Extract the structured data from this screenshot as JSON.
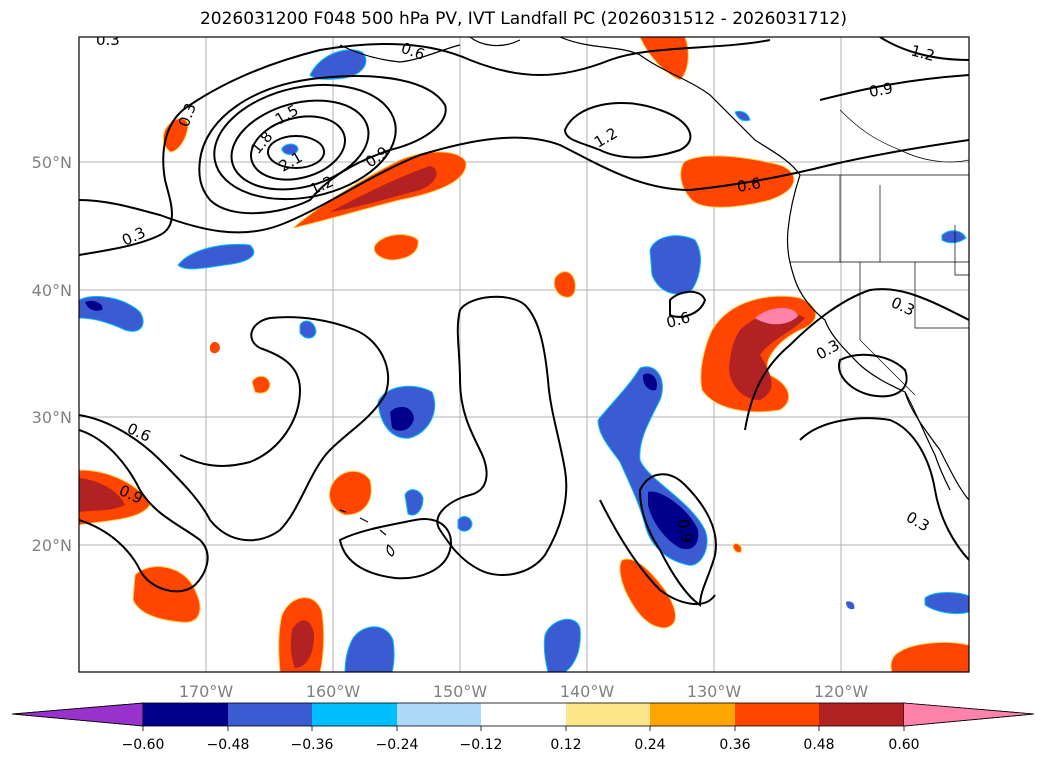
{
  "title": "2026031200 F048 500 hPa PV, IVT Landfall PC (2026031512 - 2026031712)",
  "map": {
    "lat_labels": [
      "50°N",
      "40°N",
      "30°N",
      "20°N"
    ],
    "lon_labels": [
      "170°W",
      "160°W",
      "150°W",
      "140°W",
      "130°W",
      "120°W"
    ],
    "contour_labels": [
      "0.3",
      "0.3",
      "0.3",
      "0.3",
      "0.3",
      "0.3",
      "0.6",
      "0.6",
      "0.6",
      "0.6",
      "0.9",
      "0.9",
      "0.9",
      "0.9",
      "1.2",
      "1.2",
      "1.2",
      "1.5",
      "1.8",
      "2.1"
    ],
    "fill_colors": {
      "dark_navy": "#00008b",
      "blue": "#3a5bd2",
      "sky": "#00bfff",
      "light_blue": "#add8f7",
      "orange_red": "#ff4500",
      "dark_red": "#b22222",
      "pink": "#ff82ab",
      "yellow": "#ffe88a"
    }
  },
  "colorbar": {
    "ticks": [
      "−0.60",
      "−0.48",
      "−0.36",
      "−0.24",
      "−0.12",
      "0.12",
      "0.24",
      "0.36",
      "0.48",
      "0.60"
    ],
    "colors": [
      "#9932cc",
      "#00008b",
      "#3a5bd2",
      "#00bfff",
      "#add8f7",
      "#ffffff",
      "#fde68a",
      "#ffa500",
      "#ff4500",
      "#b22222",
      "#ff82ab"
    ]
  }
}
